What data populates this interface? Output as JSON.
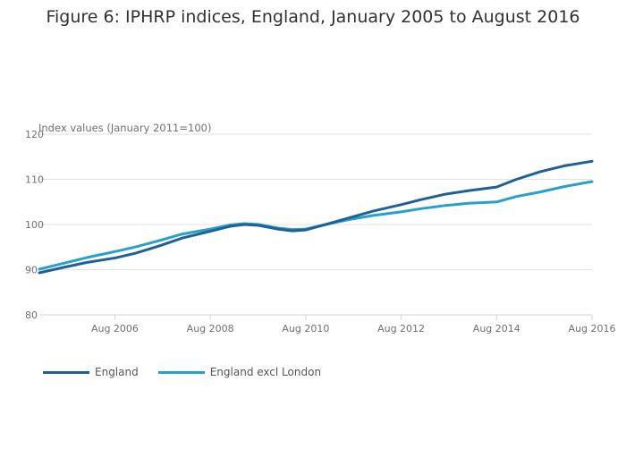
{
  "chart_data": {
    "type": "line",
    "title": "Figure 6: IPHRP indices, England, January 2005 to August 2016",
    "ylabel": "Index values (January 2011=100)",
    "xlabel": "",
    "ylim": [
      80,
      120
    ],
    "xlim": [
      2005.0,
      2016.583
    ],
    "yticks": [
      80,
      90,
      100,
      110,
      120
    ],
    "xticks": [
      {
        "value": 2006.583,
        "label": "Aug 2006"
      },
      {
        "value": 2008.583,
        "label": "Aug 2008"
      },
      {
        "value": 2010.583,
        "label": "Aug 2010"
      },
      {
        "value": 2012.583,
        "label": "Aug 2012"
      },
      {
        "value": 2014.583,
        "label": "Aug 2014"
      },
      {
        "value": 2016.583,
        "label": "Aug 2016"
      }
    ],
    "grid": true,
    "legend_position": "bottom-left",
    "x": [
      2005.0,
      2005.5,
      2006.0,
      2006.583,
      2007.0,
      2007.5,
      2008.0,
      2008.583,
      2009.0,
      2009.3,
      2009.6,
      2010.0,
      2010.3,
      2010.583,
      2011.0,
      2011.5,
      2012.0,
      2012.583,
      2013.0,
      2013.5,
      2014.0,
      2014.583,
      2015.0,
      2015.5,
      2016.0,
      2016.583
    ],
    "series": [
      {
        "name": "England",
        "color": "#206095",
        "values": [
          89.3,
          90.5,
          91.6,
          92.6,
          93.6,
          95.2,
          97.0,
          98.5,
          99.6,
          100.0,
          99.8,
          99.0,
          98.6,
          98.8,
          100.0,
          101.5,
          103.0,
          104.4,
          105.5,
          106.7,
          107.5,
          108.3,
          110.0,
          111.7,
          113.0,
          114.0
        ]
      },
      {
        "name": "England excl London",
        "color": "#27a0cc",
        "values": [
          90.1,
          91.4,
          92.7,
          94.0,
          95.0,
          96.4,
          97.9,
          99.0,
          99.9,
          100.2,
          100.0,
          99.2,
          98.9,
          99.0,
          100.0,
          101.1,
          102.0,
          102.8,
          103.5,
          104.2,
          104.7,
          105.0,
          106.2,
          107.2,
          108.4,
          109.5
        ]
      }
    ]
  }
}
